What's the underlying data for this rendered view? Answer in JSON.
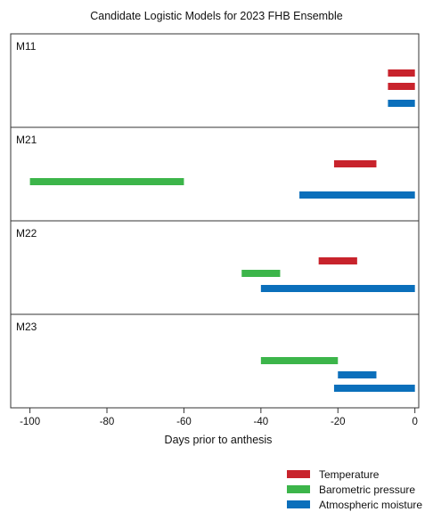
{
  "chart_data": {
    "type": "gantt",
    "title": "Candidate Logistic Models for 2023 FHB Ensemble",
    "xlabel": "Days prior to anthesis",
    "xlim": [
      -105,
      1
    ],
    "xticks": [
      -100,
      -80,
      -60,
      -40,
      -20,
      0
    ],
    "colors": {
      "Temperature": "#c8232c",
      "Barometric pressure": "#3cb54a",
      "Atmospheric moisture": "#0b6fbb"
    },
    "legend": {
      "placement": "bottom-right",
      "entries": [
        "Temperature",
        "Barometric pressure",
        "Atmospheric moisture"
      ]
    },
    "panels": [
      {
        "label": "M11",
        "bars": [
          {
            "series": "Temperature",
            "start": -7,
            "end": 0
          },
          {
            "series": "Temperature",
            "start": -7,
            "end": 0
          },
          {
            "series": "Atmospheric moisture",
            "start": -7,
            "end": 0
          }
        ]
      },
      {
        "label": "M21",
        "bars": [
          {
            "series": "Temperature",
            "start": -21,
            "end": -10
          },
          {
            "series": "Barometric pressure",
            "start": -100,
            "end": -60
          },
          {
            "series": "Atmospheric moisture",
            "start": -30,
            "end": 0
          }
        ]
      },
      {
        "label": "M22",
        "bars": [
          {
            "series": "Temperature",
            "start": -25,
            "end": -15
          },
          {
            "series": "Barometric pressure",
            "start": -45,
            "end": -35
          },
          {
            "series": "Atmospheric moisture",
            "start": -40,
            "end": 0
          }
        ]
      },
      {
        "label": "M23",
        "bars": [
          {
            "series": "Barometric pressure",
            "start": -40,
            "end": -20
          },
          {
            "series": "Atmospheric moisture",
            "start": -20,
            "end": -10
          },
          {
            "series": "Atmospheric moisture",
            "start": -21,
            "end": 0
          }
        ]
      }
    ]
  }
}
